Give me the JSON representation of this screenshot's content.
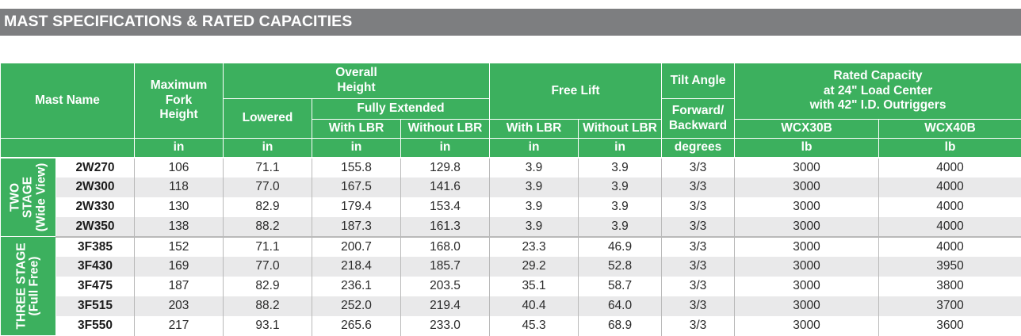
{
  "title": "MAST SPECIFICATIONS & RATED CAPACITIES",
  "headers": {
    "mast_name": "Mast Name",
    "max_fork_height": [
      "Maximum",
      "Fork",
      "Height"
    ],
    "overall_height": [
      "Overall",
      "Height"
    ],
    "lowered": "Lowered",
    "fully_extended": "Fully Extended",
    "with_lbr": "With LBR",
    "without_lbr": "Without LBR",
    "free_lift": "Free Lift",
    "tilt_angle": "Tilt Angle",
    "forward_backward": [
      "Forward/",
      "Backward"
    ],
    "rated_capacity": [
      "Rated Capacity",
      "at 24\" Load Center",
      "with 42\" I.D. Outriggers"
    ],
    "wcx30b": "WCX30B",
    "wcx40b": "WCX40B"
  },
  "units": [
    "in",
    "in",
    "in",
    "in",
    "in",
    "in",
    "degrees",
    "lb",
    "lb"
  ],
  "groups": [
    {
      "label_lines": [
        "TWO",
        "STAGE",
        "(Wide View)"
      ],
      "rows": [
        {
          "mast": "2W270",
          "values": [
            "106",
            "71.1",
            "155.8",
            "129.8",
            "3.9",
            "3.9",
            "3/3",
            "3000",
            "4000"
          ]
        },
        {
          "mast": "2W300",
          "values": [
            "118",
            "77.0",
            "167.5",
            "141.6",
            "3.9",
            "3.9",
            "3/3",
            "3000",
            "4000"
          ]
        },
        {
          "mast": "2W330",
          "values": [
            "130",
            "82.9",
            "179.4",
            "153.4",
            "3.9",
            "3.9",
            "3/3",
            "3000",
            "4000"
          ]
        },
        {
          "mast": "2W350",
          "values": [
            "138",
            "88.2",
            "187.3",
            "161.3",
            "3.9",
            "3.9",
            "3/3",
            "3000",
            "4000"
          ]
        }
      ]
    },
    {
      "label_lines": [
        "THREE STAGE",
        "(Full Free)"
      ],
      "rows": [
        {
          "mast": "3F385",
          "values": [
            "152",
            "71.1",
            "200.7",
            "168.0",
            "23.3",
            "46.9",
            "3/3",
            "3000",
            "4000"
          ]
        },
        {
          "mast": "3F430",
          "values": [
            "169",
            "77.0",
            "218.4",
            "185.7",
            "29.2",
            "52.8",
            "3/3",
            "3000",
            "3950"
          ]
        },
        {
          "mast": "3F475",
          "values": [
            "187",
            "82.9",
            "236.1",
            "203.5",
            "35.1",
            "58.7",
            "3/3",
            "3000",
            "3800"
          ]
        },
        {
          "mast": "3F515",
          "values": [
            "203",
            "88.2",
            "252.0",
            "219.4",
            "40.4",
            "64.0",
            "3/3",
            "3000",
            "3700"
          ]
        },
        {
          "mast": "3F550",
          "values": [
            "217",
            "93.1",
            "265.6",
            "233.0",
            "45.3",
            "68.9",
            "3/3",
            "3000",
            "3600"
          ]
        }
      ]
    }
  ],
  "colors": {
    "header_green": "#3cb05e",
    "title_gray": "#7d7e80",
    "row_stripe": "#e9e9ea"
  }
}
